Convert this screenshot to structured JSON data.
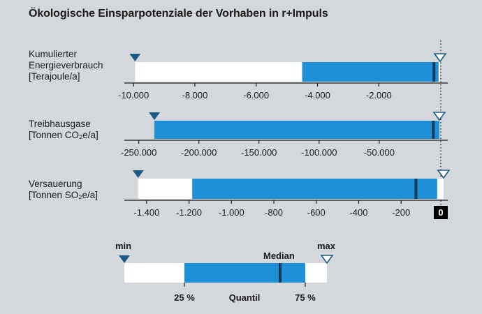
{
  "title": "Ökologische Einsparpotenziale der Vorhaben in r+Impuls",
  "colors": {
    "background": "#d4d8dc",
    "quartile_fill": "#1e90d8",
    "range_fill": "#ffffff",
    "median": "#0b3a5a",
    "marker": "#1c5a86",
    "axis": "#1a1a1a"
  },
  "chart_data": [
    {
      "type": "boxplot-bar",
      "label_lines": [
        "Kumulierter",
        "Energieverbrauch",
        "[Terajoule/a]"
      ],
      "xlim": [
        -10300,
        250
      ],
      "ticks": [
        -10000,
        -8000,
        -6000,
        -4000,
        -2000
      ],
      "tick_labels": [
        "-10.000",
        "-8.000",
        "-6.000",
        "-4.000",
        "-2.000"
      ],
      "min": -9950,
      "q1": -4500,
      "median": -200,
      "q3": -50,
      "max": 0
    },
    {
      "type": "boxplot-bar",
      "label_lines": [
        "Treibhausgase",
        "[Tonnen CO₂e/a]"
      ],
      "xlim": [
        -262000,
        7000
      ],
      "ticks": [
        -250000,
        -200000,
        -150000,
        -100000,
        -50000
      ],
      "tick_labels": [
        "-250.000",
        "-200.000",
        "-150.000",
        "-100.000",
        "-50.000"
      ],
      "min": -237000,
      "q1": -237000,
      "median": -5000,
      "q3": 0,
      "max": 0
    },
    {
      "type": "boxplot-bar",
      "label_lines": [
        "Versauerung",
        "[Tonnen SO₂e/a]"
      ],
      "xlim": [
        -1505,
        20
      ],
      "ticks": [
        -1400,
        -1200,
        -1000,
        -800,
        -600,
        -400,
        -200
      ],
      "tick_labels": [
        "-1.400",
        "-1.200",
        "-1.000",
        "-800",
        "-600",
        "-400",
        "-200"
      ],
      "min": -1440,
      "q1": -1185,
      "median": -130,
      "q3": -30,
      "max": 0
    }
  ],
  "zero_label": "0",
  "legend": {
    "min_label": "min",
    "max_label": "max",
    "median_label": "Median",
    "q1_label": "25 %",
    "q3_label": "75 %",
    "quantil_label": "Quantil"
  }
}
